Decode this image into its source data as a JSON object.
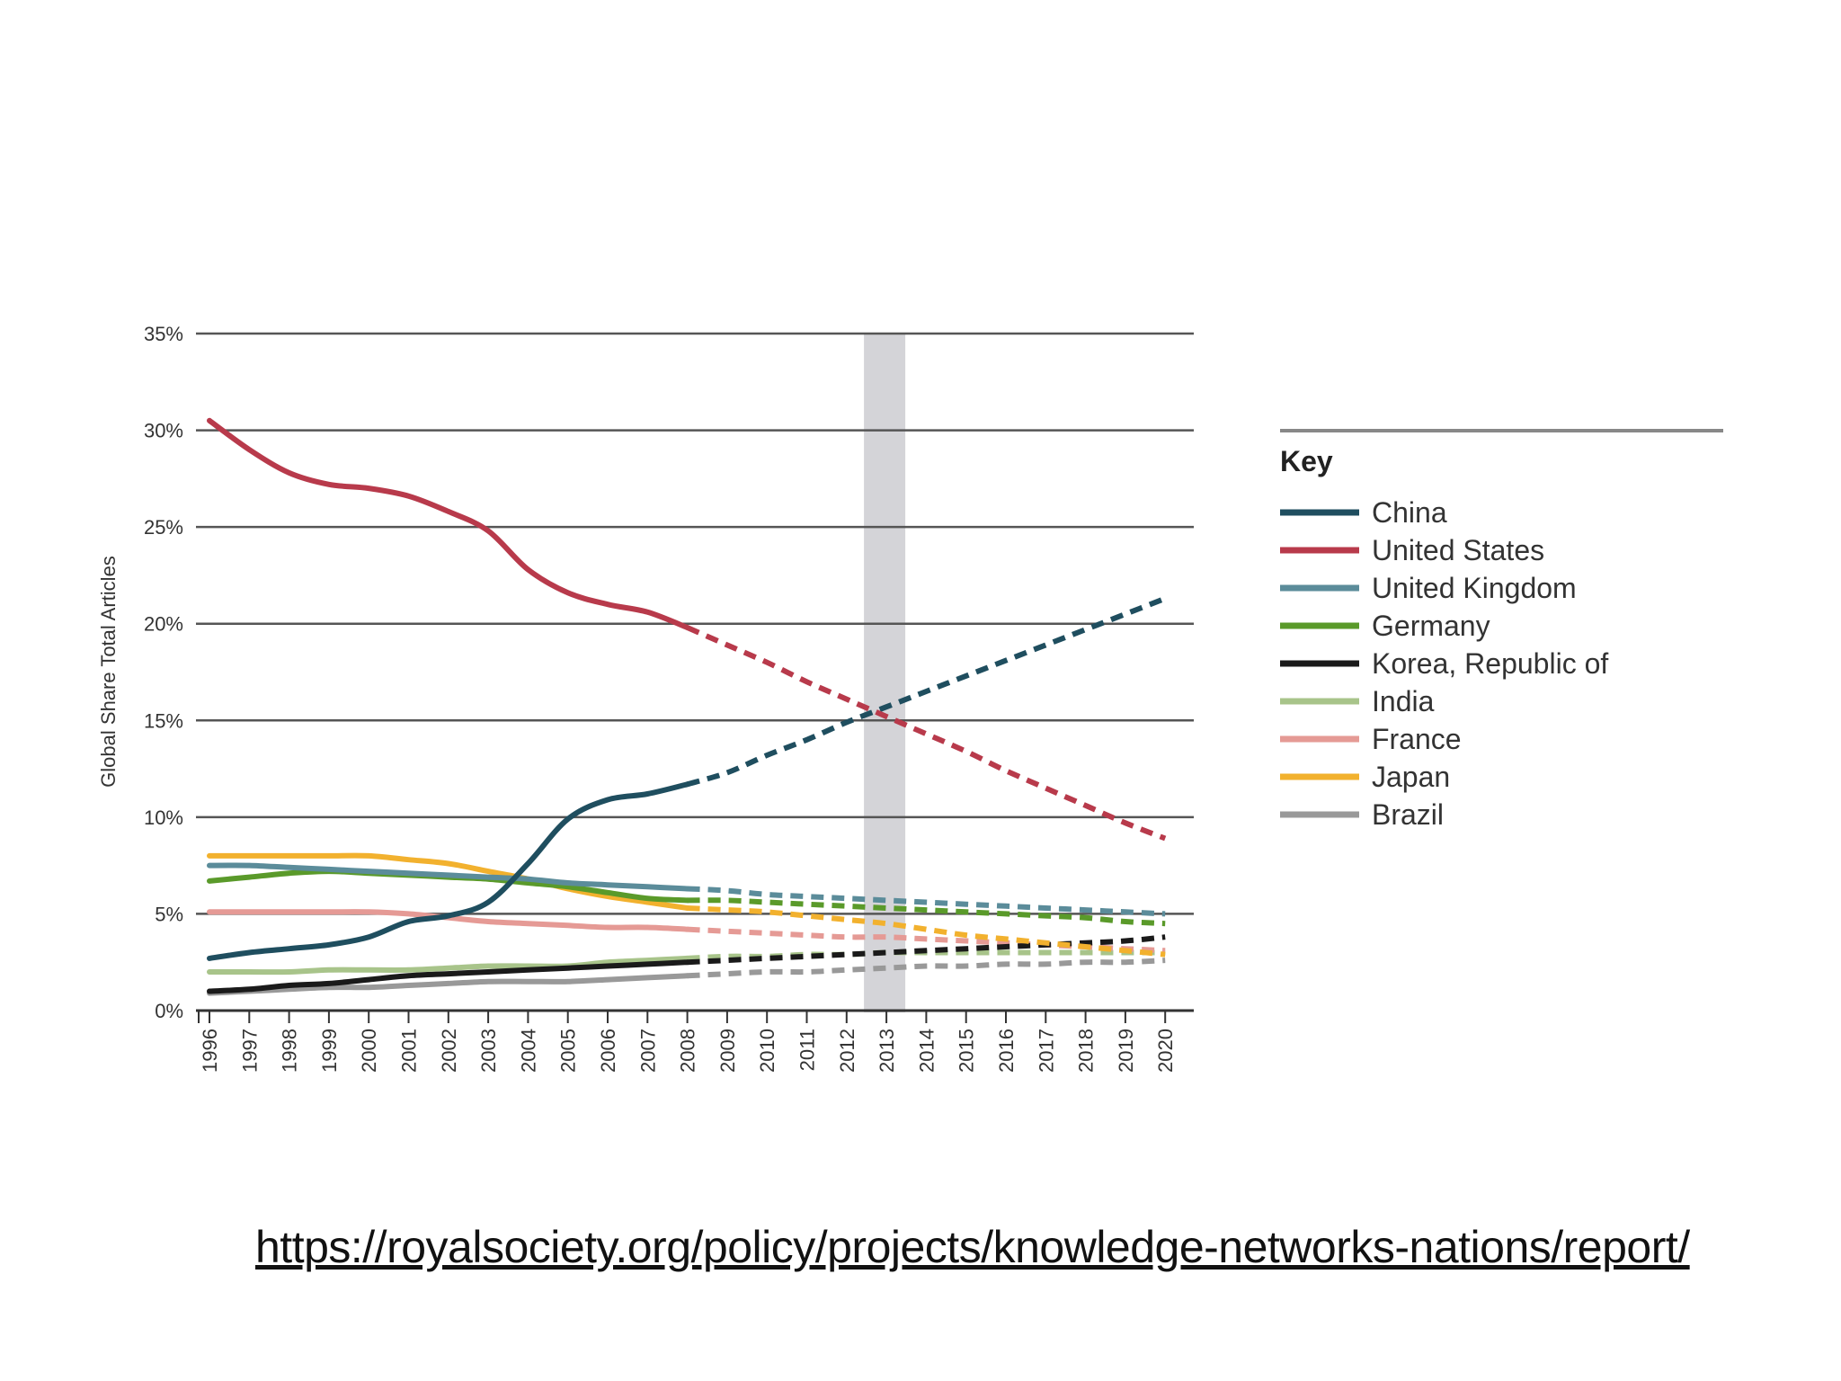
{
  "chart_data": {
    "type": "line",
    "title": "",
    "xlabel": "",
    "ylabel": "Global Share Total Articles",
    "ylim": [
      0,
      35
    ],
    "yticks": [
      "0%",
      "5%",
      "10%",
      "15%",
      "20%",
      "25%",
      "30%",
      "35%"
    ],
    "x": [
      "1996",
      "1997",
      "1998",
      "1999",
      "2000",
      "2001",
      "2002",
      "2003",
      "2004",
      "2005",
      "2006",
      "2007",
      "2008",
      "2009",
      "2010",
      "2011",
      "2012",
      "2013",
      "2014",
      "2015",
      "2016",
      "2017",
      "2018",
      "2019",
      "2020"
    ],
    "observed_until": "2008",
    "projected_from": "2008",
    "highlight_year": "2013",
    "grid": true,
    "legend_title": "Key",
    "legend_position": "right",
    "series": [
      {
        "name": "China",
        "color": "#1f4e5f",
        "observed": [
          2.7,
          3.0,
          3.2,
          3.4,
          3.8,
          4.6,
          4.9,
          5.6,
          7.6,
          9.9,
          10.9,
          11.2,
          11.7
        ],
        "projected": [
          11.7,
          12.3,
          13.2,
          14.0,
          14.9,
          15.7,
          16.5,
          17.3,
          18.1,
          18.9,
          19.7,
          20.5,
          21.3
        ]
      },
      {
        "name": "United States",
        "color": "#b83a4b",
        "observed": [
          30.5,
          29.0,
          27.8,
          27.2,
          27.0,
          26.6,
          25.8,
          24.8,
          22.8,
          21.6,
          21.0,
          20.6,
          19.8
        ],
        "projected": [
          19.8,
          18.9,
          18.0,
          17.0,
          16.1,
          15.2,
          14.3,
          13.4,
          12.4,
          11.5,
          10.6,
          9.7,
          8.9
        ]
      },
      {
        "name": "United Kingdom",
        "color": "#5b8c9a",
        "observed": [
          7.5,
          7.5,
          7.4,
          7.3,
          7.2,
          7.1,
          7.0,
          6.9,
          6.8,
          6.6,
          6.5,
          6.4,
          6.3
        ],
        "projected": [
          6.3,
          6.2,
          6.0,
          5.9,
          5.8,
          5.7,
          5.6,
          5.5,
          5.4,
          5.3,
          5.2,
          5.1,
          5.0
        ]
      },
      {
        "name": "Germany",
        "color": "#5a9a2a",
        "observed": [
          6.7,
          6.9,
          7.1,
          7.2,
          7.1,
          7.0,
          6.9,
          6.8,
          6.6,
          6.4,
          6.1,
          5.8,
          5.7
        ],
        "projected": [
          5.7,
          5.7,
          5.6,
          5.5,
          5.4,
          5.3,
          5.2,
          5.1,
          5.0,
          4.9,
          4.8,
          4.6,
          4.5
        ]
      },
      {
        "name": "Korea, Republic of",
        "color": "#1a1a1a",
        "observed": [
          1.0,
          1.1,
          1.3,
          1.4,
          1.6,
          1.8,
          1.9,
          2.0,
          2.1,
          2.2,
          2.3,
          2.4,
          2.5
        ],
        "projected": [
          2.5,
          2.6,
          2.7,
          2.8,
          2.9,
          3.0,
          3.1,
          3.2,
          3.3,
          3.4,
          3.5,
          3.6,
          3.8
        ]
      },
      {
        "name": "India",
        "color": "#a8c48a",
        "observed": [
          2.0,
          2.0,
          2.0,
          2.1,
          2.1,
          2.1,
          2.2,
          2.3,
          2.3,
          2.3,
          2.5,
          2.6,
          2.7
        ],
        "projected": [
          2.7,
          2.8,
          2.8,
          2.9,
          2.9,
          3.0,
          3.0,
          3.0,
          3.0,
          3.0,
          3.0,
          3.0,
          3.0
        ]
      },
      {
        "name": "France",
        "color": "#e59a95",
        "observed": [
          5.1,
          5.1,
          5.1,
          5.1,
          5.1,
          5.0,
          4.8,
          4.6,
          4.5,
          4.4,
          4.3,
          4.3,
          4.2
        ],
        "projected": [
          4.2,
          4.1,
          4.0,
          3.9,
          3.8,
          3.8,
          3.7,
          3.6,
          3.5,
          3.4,
          3.3,
          3.2,
          3.1
        ]
      },
      {
        "name": "Japan",
        "color": "#f2b12e",
        "observed": [
          8.0,
          8.0,
          8.0,
          8.0,
          8.0,
          7.8,
          7.6,
          7.2,
          6.8,
          6.3,
          5.9,
          5.6,
          5.3
        ],
        "projected": [
          5.3,
          5.2,
          5.1,
          4.9,
          4.7,
          4.5,
          4.2,
          3.9,
          3.7,
          3.5,
          3.3,
          3.1,
          2.9
        ]
      },
      {
        "name": "Brazil",
        "color": "#999999",
        "observed": [
          0.9,
          1.0,
          1.1,
          1.2,
          1.2,
          1.3,
          1.4,
          1.5,
          1.5,
          1.5,
          1.6,
          1.7,
          1.8
        ],
        "projected": [
          1.8,
          1.9,
          2.0,
          2.0,
          2.1,
          2.2,
          2.3,
          2.3,
          2.4,
          2.4,
          2.5,
          2.5,
          2.6
        ]
      }
    ]
  },
  "source_link": "https://royalsociety.org/policy/projects/knowledge-networks-nations/report/"
}
